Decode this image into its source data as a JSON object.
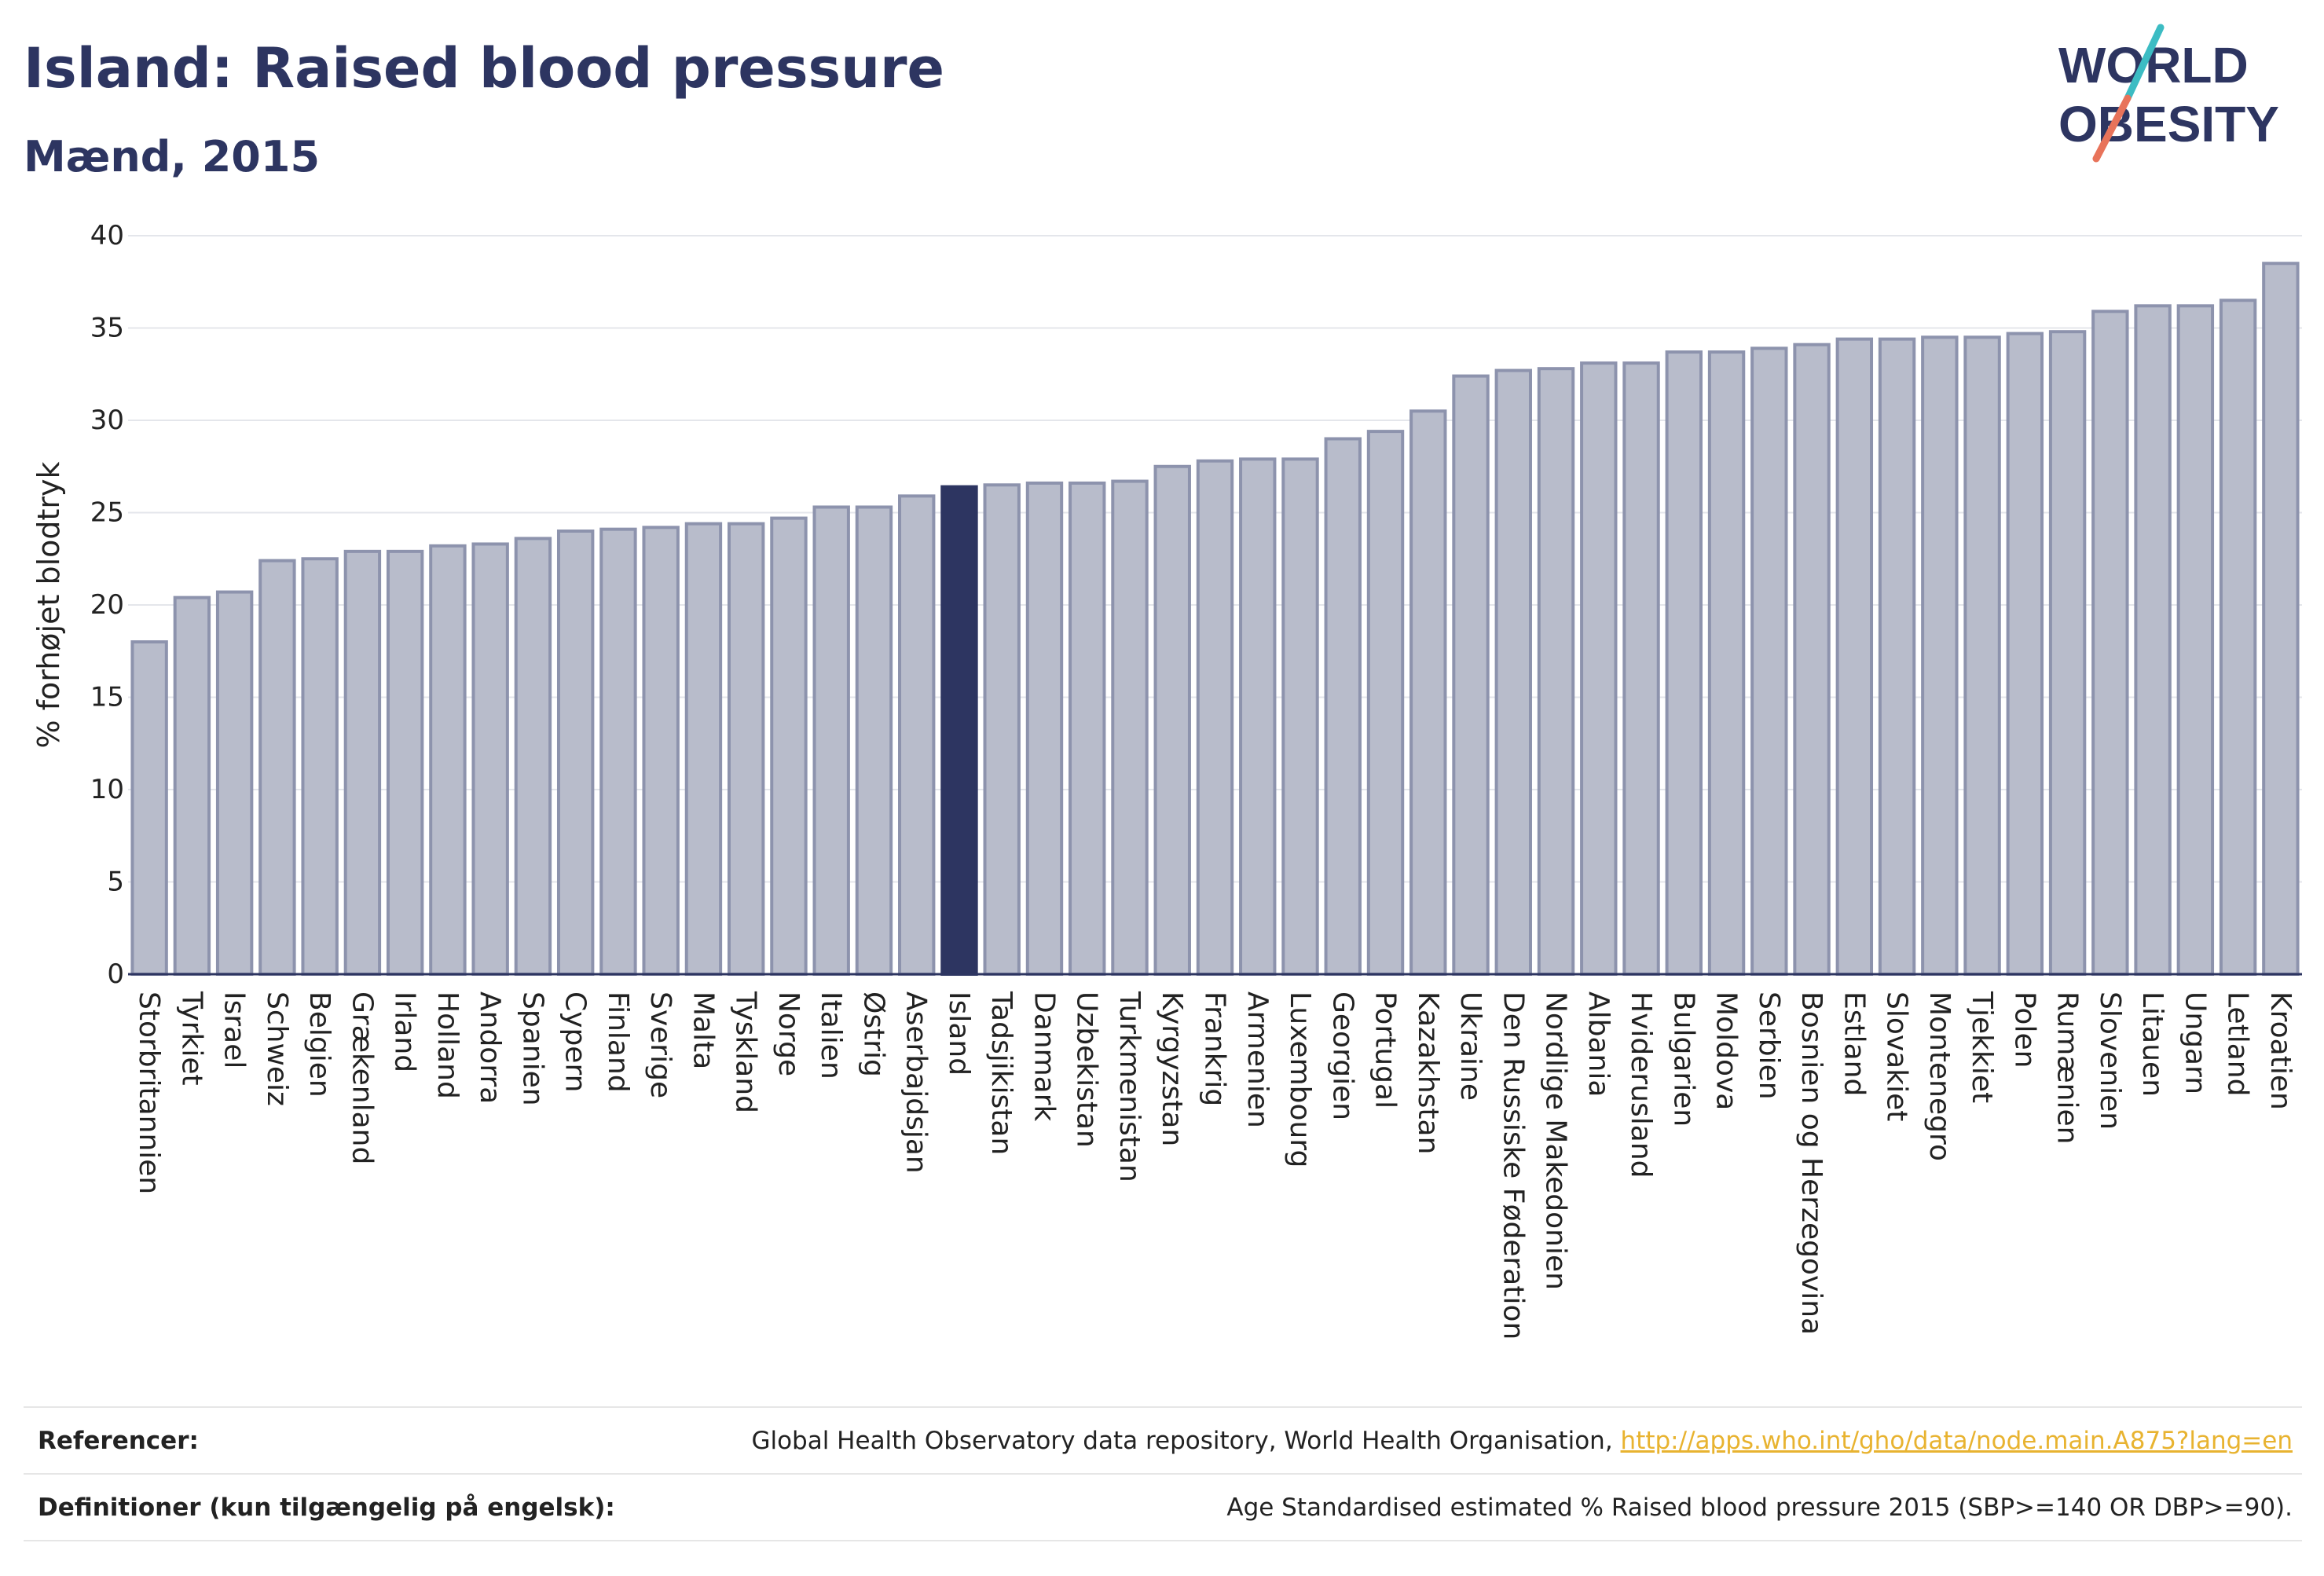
{
  "header": {
    "title": "Island: Raised blood pressure",
    "subtitle": "Mænd, 2015"
  },
  "logo": {
    "line1": "WORLD",
    "line2": "OBESITY",
    "accent_teal": "#3cbcc3",
    "accent_coral": "#e8735a",
    "text_color": "#2d3561"
  },
  "chart_data": {
    "type": "bar",
    "ylabel": "% forhøjet blodtryk",
    "ylim": [
      0,
      40
    ],
    "yticks": [
      0,
      5,
      10,
      15,
      20,
      25,
      30,
      35,
      40
    ],
    "highlight_category": "Island",
    "colors": {
      "bar_fill": "#b8bccb",
      "bar_stroke": "#8d93ad",
      "highlight": "#2d3561",
      "grid": "#e4e6eb",
      "baseline": "#2d3561"
    },
    "categories": [
      "Storbritannien",
      "Tyrkiet",
      "Israel",
      "Schweiz",
      "Belgien",
      "Grækenland",
      "Irland",
      "Holland",
      "Andorra",
      "Spanien",
      "Cypern",
      "Finland",
      "Sverige",
      "Malta",
      "Tyskland",
      "Norge",
      "Italien",
      "Østrig",
      "Aserbajdsjan",
      "Island",
      "Tadsjikistan",
      "Danmark",
      "Uzbekistan",
      "Turkmenistan",
      "Kyrgyzstan",
      "Frankrig",
      "Armenien",
      "Luxembourg",
      "Georgien",
      "Portugal",
      "Kazakhstan",
      "Ukraine",
      "Den Russiske Føderation",
      "Nordlige Makedonien",
      "Albania",
      "Hviderusland",
      "Bulgarien",
      "Moldova",
      "Serbien",
      "Bosnien og Herzegovina",
      "Estland",
      "Slovakiet",
      "Montenegro",
      "Tjekkiet",
      "Polen",
      "Rumænien",
      "Slovenien",
      "Litauen",
      "Ungarn",
      "Letland",
      "Kroatien"
    ],
    "values": [
      18.0,
      20.4,
      20.7,
      22.4,
      22.5,
      22.9,
      22.9,
      23.2,
      23.3,
      23.6,
      24.0,
      24.1,
      24.2,
      24.4,
      24.4,
      24.7,
      25.3,
      25.3,
      25.9,
      26.4,
      26.5,
      26.6,
      26.6,
      26.7,
      27.5,
      27.8,
      27.9,
      27.9,
      29.0,
      29.4,
      30.5,
      32.4,
      32.7,
      32.8,
      33.1,
      33.1,
      33.7,
      33.7,
      33.9,
      34.1,
      34.4,
      34.4,
      34.5,
      34.5,
      34.7,
      34.8,
      35.9,
      36.2,
      36.2,
      36.5,
      38.5
    ]
  },
  "footer": {
    "references_label": "Referencer:",
    "references_text": "Global Health Observatory data repository, World Health Organisation, ",
    "references_link": "http://apps.who.int/gho/data/node.main.A875?lang=en",
    "definitions_label": "Definitioner (kun tilgængelig på engelsk):",
    "definitions_text": "Age Standardised estimated % Raised blood pressure 2015 (SBP>=140 OR DBP>=90)."
  }
}
